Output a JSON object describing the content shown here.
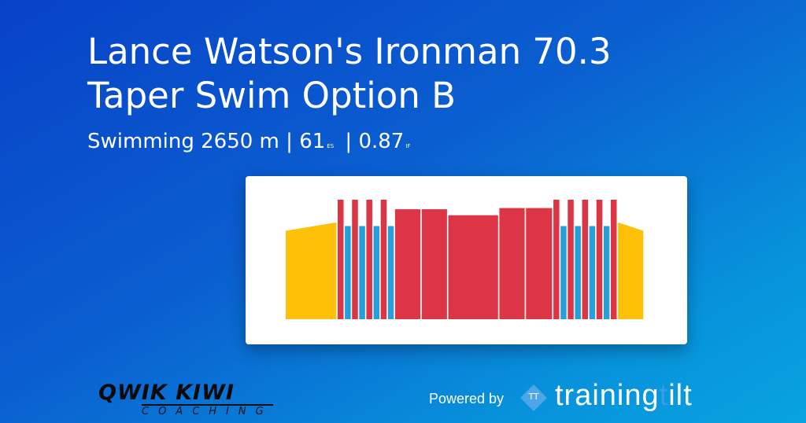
{
  "header": {
    "title_line1": "Lance Watson's Ironman 70.3",
    "title_line2": "Taper Swim Option B",
    "sport": "Swimming 2650 m",
    "separator": "|",
    "es_value": "61",
    "es_label": "ES",
    "if_value": "0.87",
    "if_label": "IF"
  },
  "footer": {
    "coach_logo_line1": "QWIK KIWI",
    "coach_logo_line2": "COACHING",
    "powered_by": "Powered by",
    "brand_icon": "TT",
    "brand_part1": "training",
    "brand_part2": "t",
    "brand_part3": "ilt"
  },
  "colors": {
    "warmup": "#ffc107",
    "interval": "#dc3545",
    "recovery": "#26a0da",
    "rest": "#8fd19e"
  },
  "chart_data": {
    "type": "bar",
    "description_units": "relative intensity (% of max) per workout segment",
    "segments": [
      {
        "kind": "warmup",
        "intensity_start": 74,
        "intensity_end": 81,
        "width": 60
      },
      {
        "kind": "interval",
        "intensity": 100,
        "width": 7
      },
      {
        "kind": "recovery",
        "intensity": 78,
        "width": 7
      },
      {
        "kind": "interval",
        "intensity": 100,
        "width": 7
      },
      {
        "kind": "recovery",
        "intensity": 78,
        "width": 7
      },
      {
        "kind": "interval",
        "intensity": 100,
        "width": 7
      },
      {
        "kind": "recovery",
        "intensity": 78,
        "width": 7
      },
      {
        "kind": "interval",
        "intensity": 100,
        "width": 7
      },
      {
        "kind": "recovery",
        "intensity": 78,
        "width": 7
      },
      {
        "kind": "interval",
        "intensity": 92,
        "width": 30
      },
      {
        "kind": "interval",
        "intensity": 92,
        "width": 30
      },
      {
        "kind": "interval",
        "intensity": 87,
        "width": 59
      },
      {
        "kind": "interval",
        "intensity": 93,
        "width": 30
      },
      {
        "kind": "interval",
        "intensity": 93,
        "width": 31
      },
      {
        "kind": "interval",
        "intensity": 100,
        "width": 7
      },
      {
        "kind": "recovery",
        "intensity": 78,
        "width": 7
      },
      {
        "kind": "interval",
        "intensity": 100,
        "width": 7
      },
      {
        "kind": "recovery",
        "intensity": 78,
        "width": 7
      },
      {
        "kind": "interval",
        "intensity": 100,
        "width": 7
      },
      {
        "kind": "recovery",
        "intensity": 78,
        "width": 7
      },
      {
        "kind": "interval",
        "intensity": 100,
        "width": 7
      },
      {
        "kind": "recovery",
        "intensity": 78,
        "width": 7
      },
      {
        "kind": "interval",
        "intensity": 100,
        "width": 7
      },
      {
        "kind": "cooldown",
        "intensity_start": 81,
        "intensity_end": 74,
        "width": 30
      }
    ]
  }
}
